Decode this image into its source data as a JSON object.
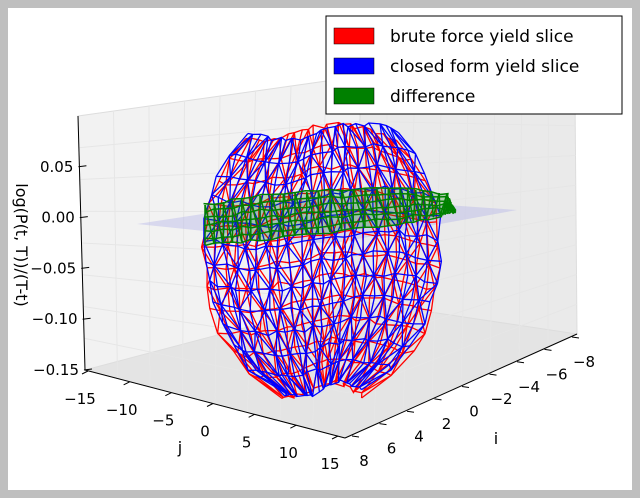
{
  "chart_data": {
    "type": "3d-wireframe",
    "title": "",
    "axes": {
      "x": {
        "label": "i",
        "range": [
          -8,
          8
        ],
        "ticks": [
          "-8",
          "-6",
          "-4",
          "-2",
          "0",
          "2",
          "4",
          "6",
          "8"
        ]
      },
      "y": {
        "label": "j",
        "range": [
          -15,
          15
        ],
        "ticks": [
          "-15",
          "-10",
          "-5",
          "0",
          "5",
          "10",
          "15"
        ]
      },
      "z": {
        "label": "log(P(t, T))/(T-t)",
        "range": [
          -0.15,
          0.1
        ],
        "ticks": [
          "-0.15",
          "-0.10",
          "-0.05",
          "0.00",
          "0.05"
        ]
      }
    },
    "plane_z": 0.0,
    "series": [
      {
        "name": "brute force yield slice",
        "color": "#ff0000",
        "kind": "wireframe"
      },
      {
        "name": "closed form yield slice",
        "color": "#0000ff",
        "kind": "wireframe"
      },
      {
        "name": "difference",
        "color": "#008000",
        "kind": "wireframe"
      }
    ],
    "legend_position": "top-right",
    "grid": true
  }
}
